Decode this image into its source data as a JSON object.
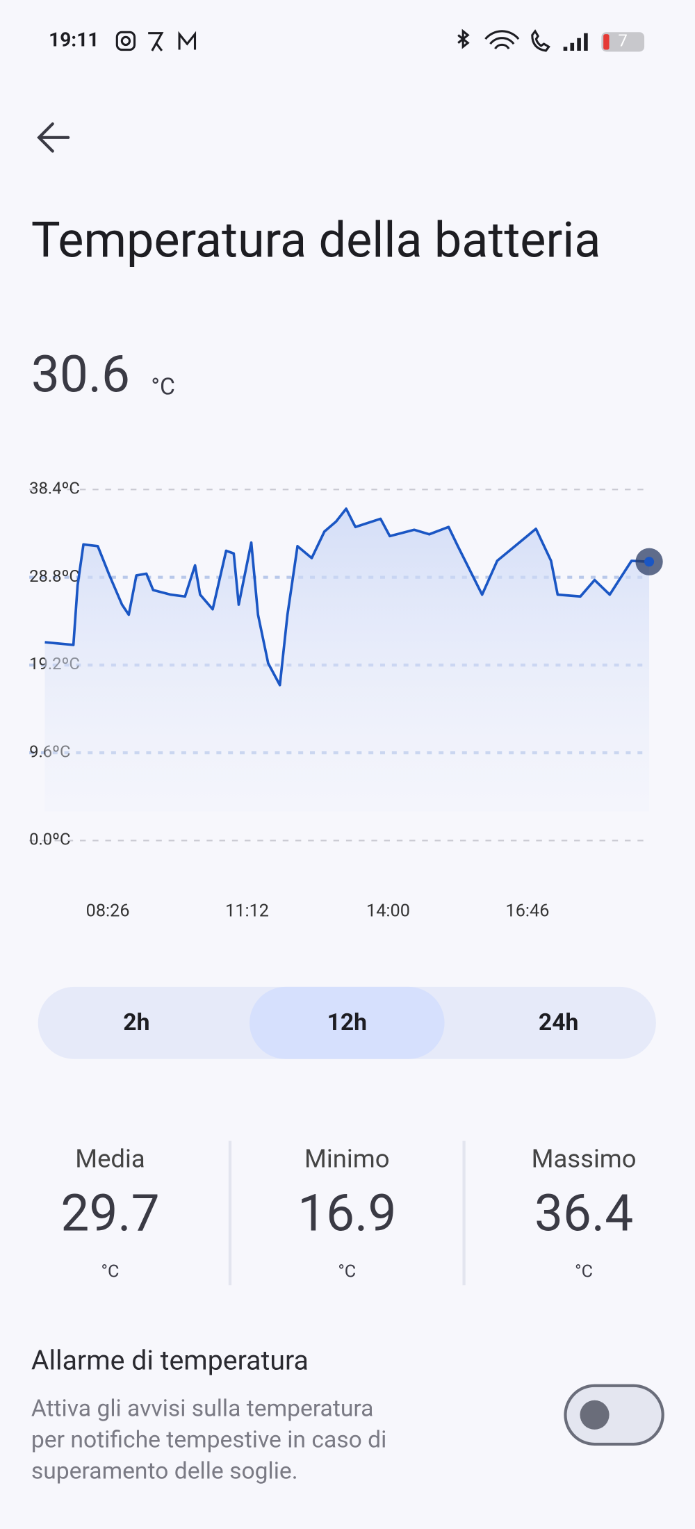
{
  "status_bar": {
    "time": "19:11",
    "battery": "7"
  },
  "header": {
    "title": "Temperatura della batteria"
  },
  "current": {
    "value": 30.6,
    "unit": "°C"
  },
  "chart_data": {
    "type": "line",
    "x": [
      "07:11",
      "07:45",
      "07:50",
      "07:57",
      "08:14",
      "08:28",
      "08:43",
      "08:51",
      "09:00",
      "09:12",
      "09:20",
      "09:41",
      "09:58",
      "10:10",
      "10:16",
      "10:31",
      "10:47",
      "10:56",
      "11:02",
      "11:17",
      "11:25",
      "11:37",
      "11:51",
      "12:00",
      "12:12",
      "12:29",
      "12:44",
      "12:58",
      "13:10",
      "13:21",
      "13:51",
      "14:02",
      "14:31",
      "14:49",
      "15:12",
      "15:23",
      "15:52",
      "16:10",
      "16:56",
      "17:14",
      "17:22",
      "17:49",
      "18:06",
      "18:24",
      "18:50",
      "19:11"
    ],
    "series": [
      {
        "color": "#1a56c4",
        "values": [
          21.7,
          21.4,
          27.9,
          32.4,
          32.2,
          29.0,
          25.8,
          24.7,
          29.0,
          29.2,
          27.4,
          26.9,
          26.7,
          30.1,
          26.9,
          25.3,
          31.7,
          31.4,
          25.8,
          32.6,
          24.7,
          19.4,
          17.0,
          24.7,
          32.2,
          30.9,
          33.8,
          34.9,
          36.3,
          34.3,
          35.2,
          33.3,
          34.0,
          33.5,
          34.3,
          32.2,
          26.9,
          30.6,
          34.1,
          30.6,
          26.9,
          26.7,
          28.5,
          26.9,
          30.6,
          30.5
        ]
      }
    ],
    "xlim": [
      "07:11",
      "19:11"
    ],
    "xticks": [
      "08:26",
      "11:12",
      "14:00",
      "16:46"
    ],
    "ylim": [
      0,
      38.4
    ],
    "yticks": [
      {
        "value": 0,
        "label": "0.0ºC"
      },
      {
        "value": 9.6,
        "label": "9.6ºC"
      },
      {
        "value": 19.2,
        "label": "19.2ºC"
      },
      {
        "value": 28.8,
        "label": "28.8ºC"
      },
      {
        "value": 38.4,
        "label": "38.4ºC"
      }
    ],
    "grid": true
  },
  "range_tabs": {
    "options": [
      "2h",
      "12h",
      "24h"
    ],
    "selected": 1
  },
  "stats": [
    {
      "label": "Media",
      "value": 29.7,
      "unit": "°C"
    },
    {
      "label": "Minimo",
      "value": 16.9,
      "unit": "°C"
    },
    {
      "label": "Massimo",
      "value": 36.4,
      "unit": "°C"
    }
  ],
  "alarm": {
    "title": "Allarme di temperatura",
    "description_lines": [
      "Attiva gli avvisi sulla temperatura",
      "per notifiche tempestive in caso di",
      "superamento delle soglie."
    ],
    "enabled": false
  }
}
